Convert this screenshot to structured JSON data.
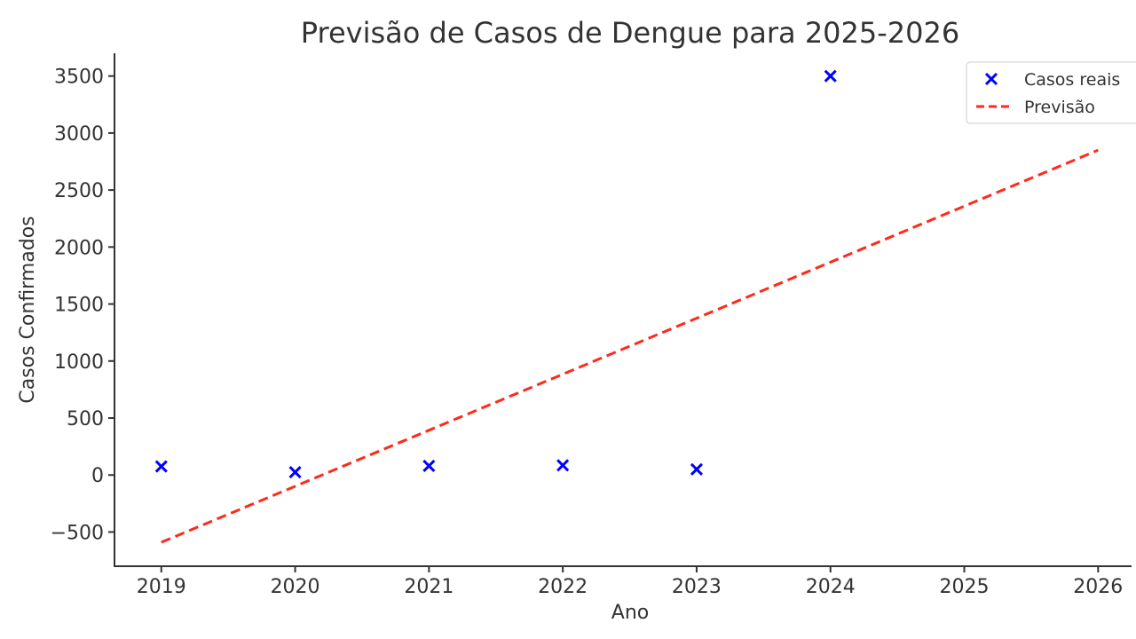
{
  "chart_data": {
    "type": "scatter",
    "title": "Previsão de Casos de Dengue para 2025-2026",
    "xlabel": "Ano",
    "ylabel": "Casos Confirmados",
    "xlim": [
      2018.65,
      2026.25
    ],
    "ylim": [
      -800,
      3700
    ],
    "x_ticks": [
      2019,
      2020,
      2021,
      2022,
      2023,
      2024,
      2025,
      2026
    ],
    "y_ticks": [
      -500,
      0,
      500,
      1000,
      1500,
      2000,
      2500,
      3000,
      3500
    ],
    "grid": false,
    "legend_position": "top-right",
    "series": [
      {
        "name": "Casos reais",
        "kind": "scatter",
        "marker": "x",
        "color": "#0000ff",
        "x": [
          2019,
          2020,
          2021,
          2022,
          2023,
          2024
        ],
        "y": [
          75,
          25,
          80,
          85,
          50,
          3500
        ]
      },
      {
        "name": "Previsão",
        "kind": "line",
        "style": "dashed",
        "color": "#ff2a1a",
        "x": [
          2019,
          2026
        ],
        "y": [
          -590,
          2850
        ]
      }
    ]
  }
}
